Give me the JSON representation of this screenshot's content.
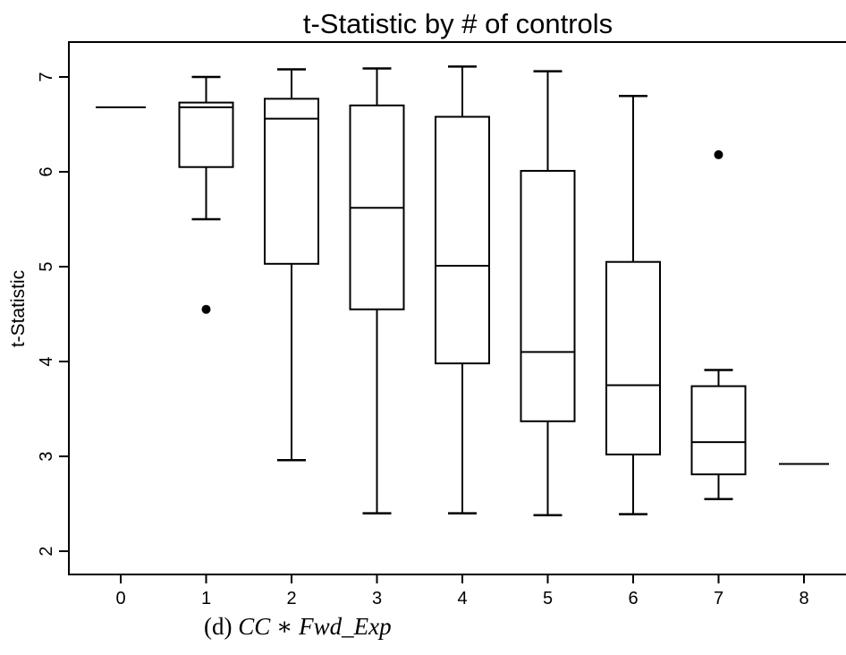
{
  "chart_data": {
    "type": "box",
    "title": "t-Statistic by # of controls",
    "xlabel": "",
    "ylabel": "t-Statistic",
    "categories": [
      "0",
      "1",
      "2",
      "3",
      "4",
      "5",
      "6",
      "7",
      "8"
    ],
    "yticks": [
      "2",
      "3",
      "4",
      "5",
      "6",
      "7"
    ],
    "ylim": [
      1.8,
      7.3
    ],
    "boxes": [
      {
        "category": "0",
        "whisker_low": 6.68,
        "q1": 6.68,
        "median": 6.68,
        "q3": 6.68,
        "whisker_high": 6.68,
        "outliers": []
      },
      {
        "category": "1",
        "whisker_low": 5.5,
        "q1": 6.05,
        "median": 6.68,
        "q3": 6.73,
        "whisker_high": 7.0,
        "outliers": [
          4.55
        ]
      },
      {
        "category": "2",
        "whisker_low": 2.96,
        "q1": 5.03,
        "median": 6.56,
        "q3": 6.77,
        "whisker_high": 7.08,
        "outliers": []
      },
      {
        "category": "3",
        "whisker_low": 2.4,
        "q1": 4.55,
        "median": 5.62,
        "q3": 6.7,
        "whisker_high": 7.09,
        "outliers": []
      },
      {
        "category": "4",
        "whisker_low": 2.4,
        "q1": 3.98,
        "median": 5.01,
        "q3": 6.58,
        "whisker_high": 7.11,
        "outliers": []
      },
      {
        "category": "5",
        "whisker_low": 2.38,
        "q1": 3.37,
        "median": 4.1,
        "q3": 6.01,
        "whisker_high": 7.06,
        "outliers": []
      },
      {
        "category": "6",
        "whisker_low": 2.39,
        "q1": 3.02,
        "median": 3.75,
        "q3": 5.05,
        "whisker_high": 6.8,
        "outliers": []
      },
      {
        "category": "7",
        "whisker_low": 2.55,
        "q1": 2.81,
        "median": 3.15,
        "q3": 3.74,
        "whisker_high": 3.91,
        "outliers": [
          6.18
        ]
      },
      {
        "category": "8",
        "whisker_low": 2.92,
        "q1": 2.92,
        "median": 2.92,
        "q3": 2.92,
        "whisker_high": 2.92,
        "outliers": []
      }
    ],
    "grid": false,
    "legend": "none"
  },
  "caption": {
    "prefix": "(d) ",
    "math": "CC ∗ Fwd_Exp"
  }
}
